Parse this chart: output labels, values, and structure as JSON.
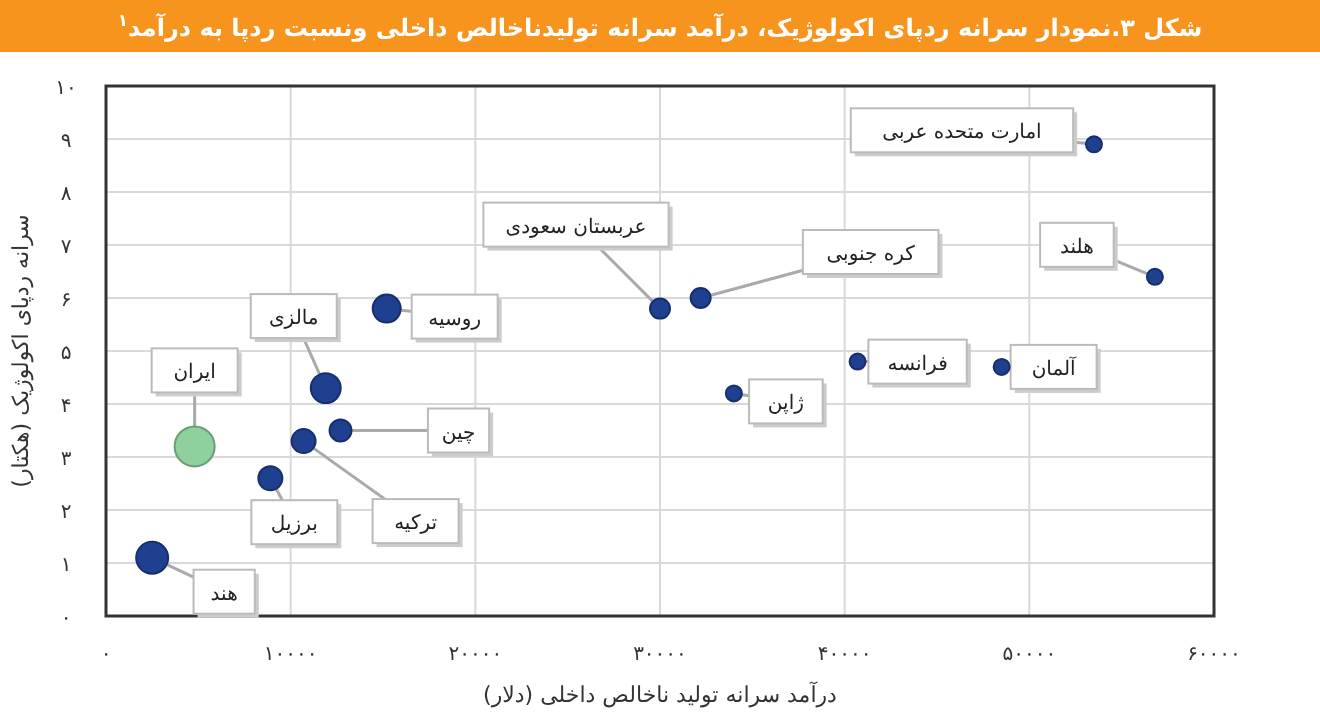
{
  "chart_data": {
    "type": "bubble",
    "title": "شکل ۳.نمودار سرانه ردپای اکولوژیک، درآمد سرانه تولیدناخالص داخلی ونسبت ردپا به درآمد$^{۱}$",
    "xlabel": "درآمد سرانه تولید ناخالص داخلی (دلار)",
    "ylabel": "سرانه ردپای اکولوژیک (هکتار)",
    "x": [
      2500,
      4800,
      8900,
      10700,
      11900,
      12700,
      15200,
      30000,
      32200,
      34000,
      40700,
      48500,
      53500,
      56800
    ],
    "values": [
      1.1,
      3.2,
      2.6,
      3.3,
      4.3,
      3.5,
      5.8,
      5.8,
      6.0,
      4.2,
      4.8,
      4.7,
      8.9,
      6.4
    ],
    "sizes": [
      0.64,
      1,
      0.36,
      0.36,
      0.56,
      0.3,
      0.49,
      0.25,
      0.25,
      0.16,
      0.16,
      0.16,
      0.16,
      0.16
    ],
    "colors": [
      "#1f3f8f",
      "#8fd19e",
      "#1f3f8f",
      "#1f3f8f",
      "#1f3f8f",
      "#1f3f8f",
      "#1f3f8f",
      "#1f3f8f",
      "#1f3f8f",
      "#1f3f8f",
      "#1f3f8f",
      "#1f3f8f",
      "#1f3f8f",
      "#1f3f8f"
    ],
    "annotations": [
      {
        "text": "هند",
        "x": 2500,
        "y": 1.1
      },
      {
        "text": "ایران",
        "x": 4800,
        "y": 3.2
      },
      {
        "text": "برزیل",
        "x": 8900,
        "y": 2.6
      },
      {
        "text": "ترکیه",
        "x": 10700,
        "y": 3.3
      },
      {
        "text": "مالزی",
        "x": 11900,
        "y": 4.3
      },
      {
        "text": "چین",
        "x": 12700,
        "y": 3.5
      },
      {
        "text": "روسیه",
        "x": 15200,
        "y": 5.8
      },
      {
        "text": "عربستان سعودی",
        "x": 30000,
        "y": 5.8
      },
      {
        "text": "کره جنوبی",
        "x": 32200,
        "y": 6.0
      },
      {
        "text": "ژاپن",
        "x": 34000,
        "y": 4.2
      },
      {
        "text": "فرانسه",
        "x": 40700,
        "y": 4.8
      },
      {
        "text": "آلمان",
        "x": 48500,
        "y": 4.7
      },
      {
        "text": "امارت متحده عربی",
        "x": 53500,
        "y": 8.9
      },
      {
        "text": "هلند",
        "x": 56800,
        "y": 6.4
      }
    ],
    "xlim": [
      0,
      60000
    ],
    "xticks": [
      {
        "value": 0,
        "label": "۰"
      },
      {
        "value": 10000,
        "label": "۱۰۰۰۰"
      },
      {
        "value": 20000,
        "label": "۲۰۰۰۰"
      },
      {
        "value": 30000,
        "label": "۳۰۰۰۰"
      },
      {
        "value": 40000,
        "label": "۴۰۰۰۰"
      },
      {
        "value": 50000,
        "label": "۵۰۰۰۰"
      },
      {
        "value": 60000,
        "label": "۶۰۰۰۰"
      }
    ],
    "ylim": [
      0,
      10
    ],
    "yticks": [
      {
        "value": 0,
        "label": "۰"
      },
      {
        "value": 1,
        "label": "۱"
      },
      {
        "value": 2,
        "label": "۲"
      },
      {
        "value": 3,
        "label": "۳"
      },
      {
        "value": 4,
        "label": "۴"
      },
      {
        "value": 5,
        "label": "۵"
      },
      {
        "value": 6,
        "label": "۶"
      },
      {
        "value": 7,
        "label": "۷"
      },
      {
        "value": 8,
        "label": "۸"
      },
      {
        "value": 9,
        "label": "۹"
      },
      {
        "value": 10,
        "label": "۱۰"
      }
    ],
    "grid": true
  }
}
